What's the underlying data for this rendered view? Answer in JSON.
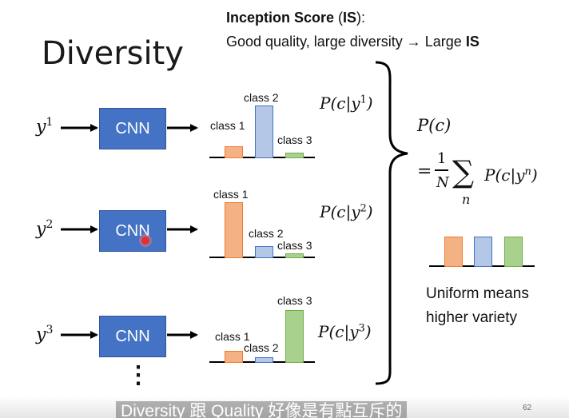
{
  "title": "Diversity",
  "header": {
    "line1_bold": "Inception Score",
    "line1_paren_open": " (",
    "line1_is": "IS",
    "line1_close": "):",
    "line2_text": "Good quality, large diversity → Large ",
    "line2_bold": "IS"
  },
  "cnn_label": "CNN",
  "rows": [
    {
      "input": "y",
      "sup": "1",
      "prob": "P(c|y",
      "prob_sup": "1",
      "bars": [
        {
          "label": "class 1",
          "value": 0.15
        },
        {
          "label": "class 2",
          "value": 0.75
        },
        {
          "label": "class 3",
          "value": 0.06
        }
      ]
    },
    {
      "input": "y",
      "sup": "2",
      "prob": "P(c|y",
      "prob_sup": "2",
      "bars": [
        {
          "label": "class 1",
          "value": 0.8
        },
        {
          "label": "class 2",
          "value": 0.15
        },
        {
          "label": "class 3",
          "value": 0.05
        }
      ]
    },
    {
      "input": "y",
      "sup": "3",
      "prob": "P(c|y",
      "prob_sup": "3",
      "bars": [
        {
          "label": "class 1",
          "value": 0.15
        },
        {
          "label": "class 2",
          "value": 0.06
        },
        {
          "label": "class 3",
          "value": 0.75
        }
      ]
    }
  ],
  "prob_close": ")",
  "marginal": {
    "pc": "P(c)",
    "eq": "=",
    "frac_num": "1",
    "frac_den": "N",
    "sum": "∑",
    "sum_index": "n",
    "term": "P(c|y",
    "term_sup": "n",
    "term_close": ")"
  },
  "uniform": {
    "bars": [
      0.5,
      0.5,
      0.5
    ],
    "line1": "Uniform means",
    "line2": "higher variety"
  },
  "ellipsis": "⋮",
  "subtitle": "Diversity 跟 Quality 好像是有點互斥的",
  "page_number": "62",
  "colors": {
    "cnn": "#4472C4",
    "class1": "#F4B183",
    "class2": "#B4C7E7",
    "class3": "#A9D18E"
  }
}
